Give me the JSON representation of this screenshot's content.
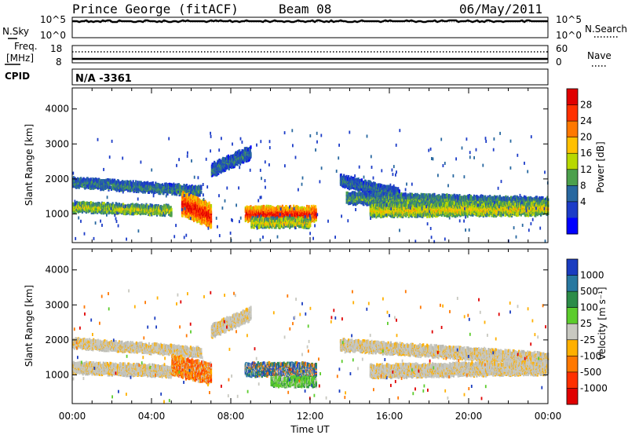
{
  "header": {
    "station": "Prince George (fitACF)",
    "beam": "Beam 08",
    "date": "06/May/2011"
  },
  "noise_panel": {
    "left_label": "N.Sky",
    "left_ticks": [
      "10^5",
      "10^0"
    ],
    "right_ticks": [
      "10^5",
      "10^0"
    ],
    "right_label": "N.Search"
  },
  "freq_panel": {
    "left_label_1": "Freq.",
    "left_label_2": "[MHz]",
    "left_ticks": [
      "18",
      "8"
    ],
    "right_ticks": [
      "60",
      "0"
    ],
    "right_label": "Nave"
  },
  "cpid_panel": {
    "label": "CPID",
    "value": "N/A -3361"
  },
  "chart_data": [
    {
      "type": "heatmap",
      "quantity": "power",
      "ylabel": "Slant Range [km]",
      "yticks": [
        1000,
        2000,
        3000,
        4000
      ],
      "ylim": [
        180,
        4600
      ],
      "xlim_hours": [
        0,
        24
      ],
      "colorbar_label": "Power [dB]",
      "colorbar_ticks": [
        "28",
        "24",
        "20",
        "16",
        "12",
        "8",
        "4"
      ],
      "colorbar_colors": [
        "#e00000",
        "#ff3000",
        "#ff7800",
        "#ffc000",
        "#b8d800",
        "#4ca04c",
        "#2868a0",
        "#1c3cc8",
        "#0000ff"
      ],
      "regions": [
        {
          "t0": 0.0,
          "t1": 6.5,
          "r0": 1950,
          "r1": 1700,
          "w": 200,
          "level": 0.35
        },
        {
          "t0": 0.0,
          "t1": 5.0,
          "r0": 1250,
          "r1": 1150,
          "w": 200,
          "level": 0.55
        },
        {
          "t0": 5.5,
          "t1": 7.0,
          "r0": 1350,
          "r1": 1000,
          "w": 600,
          "level": 0.95
        },
        {
          "t0": 7.0,
          "t1": 9.0,
          "r0": 2300,
          "r1": 2800,
          "w": 300,
          "level": 0.3
        },
        {
          "t0": 8.7,
          "t1": 12.3,
          "r0": 1050,
          "r1": 1050,
          "w": 350,
          "level": 0.95
        },
        {
          "t0": 9.0,
          "t1": 12.0,
          "r0": 800,
          "r1": 800,
          "w": 200,
          "level": 0.6
        },
        {
          "t0": 13.5,
          "t1": 16.5,
          "r0": 2000,
          "r1": 1600,
          "w": 250,
          "level": 0.3
        },
        {
          "t0": 13.8,
          "t1": 24.0,
          "r0": 1500,
          "r1": 1350,
          "w": 250,
          "level": 0.4
        },
        {
          "t0": 15.0,
          "t1": 24.0,
          "r0": 1150,
          "r1": 1200,
          "w": 300,
          "level": 0.6
        }
      ]
    },
    {
      "type": "heatmap",
      "quantity": "velocity",
      "ylabel": "Slant Range [km]",
      "yticks": [
        1000,
        2000,
        3000,
        4000
      ],
      "ylim": [
        180,
        4600
      ],
      "xlim_hours": [
        0,
        24
      ],
      "xticks": [
        "00:00",
        "04:00",
        "08:00",
        "12:00",
        "16:00",
        "20:00",
        "00:00"
      ],
      "xlabel": "Time UT",
      "colorbar_label": "Velocity [m s⁻¹]",
      "colorbar_ticks": [
        "1000",
        "500",
        "100",
        "25",
        "-25",
        "-100",
        "-500",
        "-1000"
      ],
      "colorbar_colors": [
        "#1a3cc0",
        "#2878a0",
        "#2c8c48",
        "#5ccc2c",
        "#c8c8c0",
        "#ffb000",
        "#ff7800",
        "#ff3000",
        "#e00000"
      ],
      "regions": [
        {
          "t0": 0.0,
          "t1": 6.5,
          "r0": 1950,
          "r1": 1700,
          "w": 200,
          "cls": "grey"
        },
        {
          "t0": 0.0,
          "t1": 5.0,
          "r0": 1250,
          "r1": 1150,
          "w": 250,
          "cls": "grey"
        },
        {
          "t0": 5.0,
          "t1": 7.0,
          "r0": 1300,
          "r1": 1100,
          "w": 500,
          "cls": "orange"
        },
        {
          "t0": 8.7,
          "t1": 12.3,
          "r0": 1200,
          "r1": 1200,
          "w": 300,
          "cls": "blue"
        },
        {
          "t0": 10.0,
          "t1": 12.3,
          "r0": 850,
          "r1": 850,
          "w": 200,
          "cls": "green"
        },
        {
          "t0": 7.0,
          "t1": 9.0,
          "r0": 2300,
          "r1": 2800,
          "w": 300,
          "cls": "grey"
        },
        {
          "t0": 13.5,
          "t1": 24.0,
          "r0": 1900,
          "r1": 1500,
          "w": 250,
          "cls": "grey"
        },
        {
          "t0": 15.0,
          "t1": 24.0,
          "r0": 1150,
          "r1": 1250,
          "w": 300,
          "cls": "grey"
        }
      ]
    }
  ]
}
